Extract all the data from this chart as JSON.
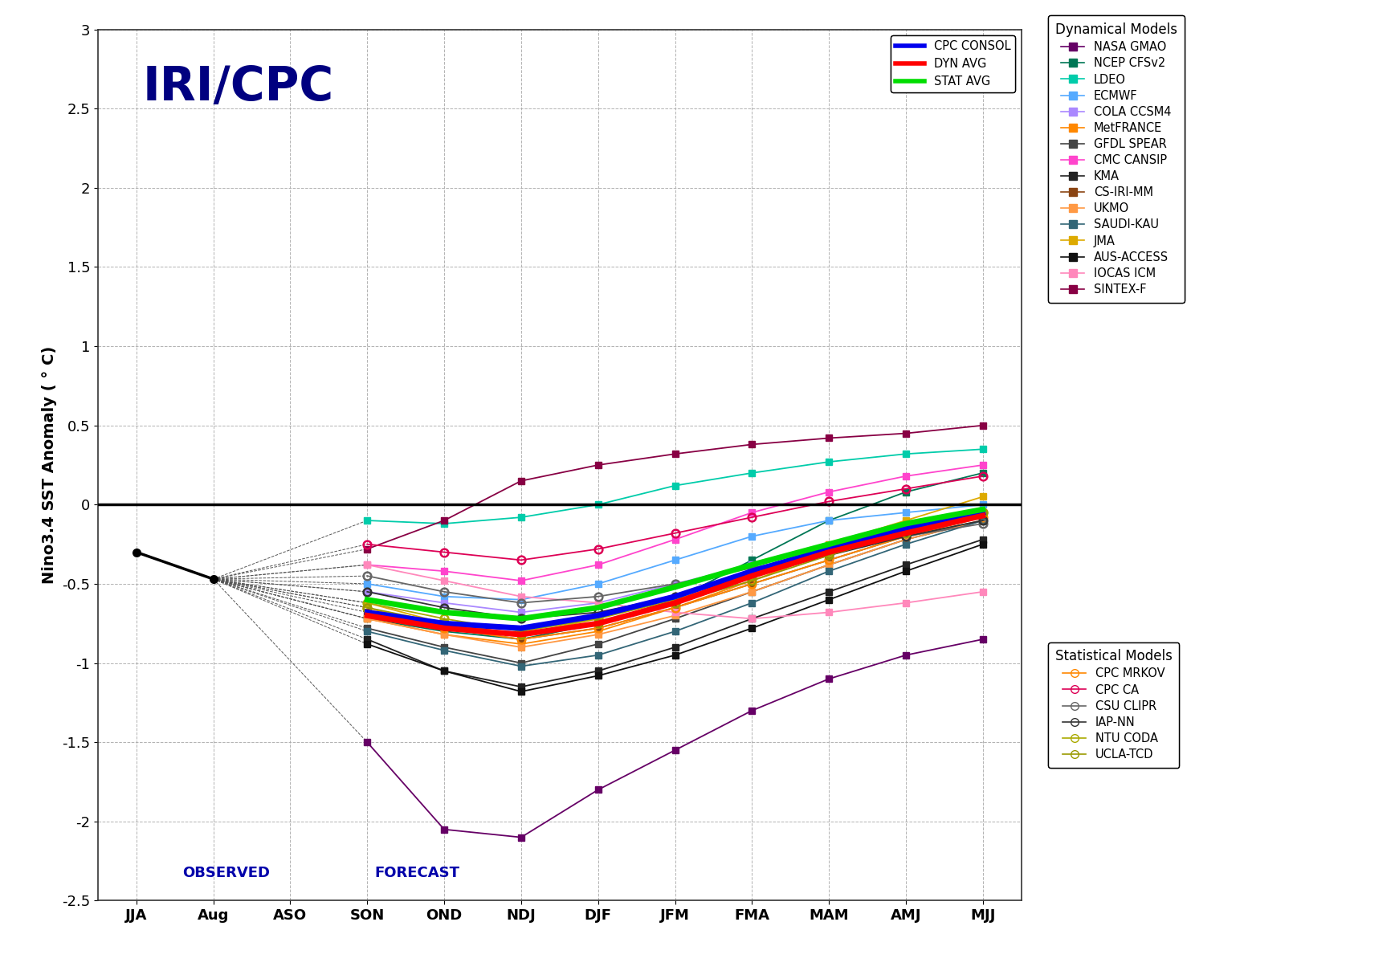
{
  "x_labels": [
    "JJA",
    "Aug",
    "ASO",
    "SON",
    "OND",
    "NDJ",
    "DJF",
    "JFM",
    "FMA",
    "MAM",
    "AMJ",
    "MJJ"
  ],
  "x_positions": [
    0,
    1,
    2,
    3,
    4,
    5,
    6,
    7,
    8,
    9,
    10,
    11
  ],
  "ylim": [
    -2.5,
    3.0
  ],
  "yticks": [
    -2.5,
    -2.0,
    -1.5,
    -1.0,
    -0.5,
    0.0,
    0.5,
    1.0,
    1.5,
    2.0,
    2.5,
    3.0
  ],
  "ylabel": "Nino3.4 SST Anomaly ( ° C)",
  "title_text": "IRI/CPC",
  "title_color": "#000080",
  "observed_label": "OBSERVED",
  "forecast_label": "FORECAST",
  "background_color": "#ffffff",
  "observed_data": {
    "x": [
      0,
      1
    ],
    "y": [
      -0.3,
      -0.47
    ],
    "color": "#000000",
    "linewidth": 2.5,
    "marker": "o",
    "markersize": 7,
    "zorder": 10
  },
  "dyn_models": {
    "NASA_GMAO": {
      "color": "#660066",
      "marker": "s",
      "x": [
        3,
        4,
        5,
        6,
        7,
        8,
        9,
        10,
        11
      ],
      "y": [
        -1.5,
        -2.05,
        -2.1,
        -1.8,
        -1.55,
        -1.3,
        -1.1,
        -0.95,
        -0.85
      ]
    },
    "NCEP_CFSv2": {
      "color": "#007755",
      "marker": "s",
      "x": [
        3,
        4,
        5,
        6,
        7,
        8,
        9,
        10,
        11
      ],
      "y": [
        -0.72,
        -0.8,
        -0.85,
        -0.75,
        -0.6,
        -0.35,
        -0.1,
        0.08,
        0.2
      ]
    },
    "LDEO": {
      "color": "#00ccaa",
      "marker": "s",
      "x": [
        3,
        4,
        5,
        6,
        7,
        8,
        9,
        10,
        11
      ],
      "y": [
        -0.1,
        -0.12,
        -0.08,
        0.0,
        0.12,
        0.2,
        0.27,
        0.32,
        0.35
      ]
    },
    "ECMWF": {
      "color": "#55aaff",
      "marker": "s",
      "x": [
        3,
        4,
        5,
        6,
        7,
        8,
        9,
        10,
        11
      ],
      "y": [
        -0.5,
        -0.58,
        -0.6,
        -0.5,
        -0.35,
        -0.2,
        -0.1,
        -0.05,
        0.0
      ]
    },
    "COLA_CCSM4": {
      "color": "#aa88ff",
      "marker": "s",
      "x": [
        3,
        4,
        5,
        6,
        7,
        8,
        9,
        10,
        11
      ],
      "y": [
        -0.55,
        -0.62,
        -0.68,
        -0.62,
        -0.5,
        -0.38,
        -0.25,
        -0.15,
        -0.08
      ]
    },
    "MetFRANCE": {
      "color": "#ff8800",
      "marker": "s",
      "x": [
        3,
        4,
        5,
        6,
        7,
        8,
        9,
        10,
        11
      ],
      "y": [
        -0.72,
        -0.82,
        -0.88,
        -0.8,
        -0.65,
        -0.48,
        -0.3,
        -0.15,
        -0.05
      ]
    },
    "GFDL_SPEAR": {
      "color": "#444444",
      "marker": "s",
      "x": [
        3,
        4,
        5,
        6,
        7,
        8,
        9,
        10,
        11
      ],
      "y": [
        -0.78,
        -0.9,
        -1.0,
        -0.88,
        -0.72,
        -0.55,
        -0.38,
        -0.22,
        -0.1
      ]
    },
    "CMC_CANSIP": {
      "color": "#ff44cc",
      "marker": "s",
      "x": [
        3,
        4,
        5,
        6,
        7,
        8,
        9,
        10,
        11
      ],
      "y": [
        -0.38,
        -0.42,
        -0.48,
        -0.38,
        -0.22,
        -0.05,
        0.08,
        0.18,
        0.25
      ]
    },
    "KMA": {
      "color": "#222222",
      "marker": "s",
      "x": [
        3,
        4,
        5,
        6,
        7,
        8,
        9,
        10,
        11
      ],
      "y": [
        -0.85,
        -1.05,
        -1.15,
        -1.05,
        -0.9,
        -0.72,
        -0.55,
        -0.38,
        -0.22
      ]
    },
    "CS_IRI_MM": {
      "color": "#8B4513",
      "marker": "s",
      "x": [
        3,
        4,
        5,
        6,
        7,
        8,
        9,
        10,
        11
      ],
      "y": [
        -0.68,
        -0.78,
        -0.85,
        -0.78,
        -0.65,
        -0.5,
        -0.35,
        -0.2,
        -0.1
      ]
    },
    "UKMO": {
      "color": "#ff9944",
      "marker": "s",
      "x": [
        3,
        4,
        5,
        6,
        7,
        8,
        9,
        10,
        11
      ],
      "y": [
        -0.72,
        -0.82,
        -0.9,
        -0.82,
        -0.7,
        -0.55,
        -0.38,
        -0.22,
        -0.1
      ]
    },
    "SAUDI_KAU": {
      "color": "#336677",
      "marker": "s",
      "x": [
        3,
        4,
        5,
        6,
        7,
        8,
        9,
        10,
        11
      ],
      "y": [
        -0.8,
        -0.92,
        -1.02,
        -0.95,
        -0.8,
        -0.62,
        -0.42,
        -0.25,
        -0.1
      ]
    },
    "JMA": {
      "color": "#ddaa00",
      "marker": "s",
      "x": [
        3,
        4,
        5,
        6,
        7,
        8,
        9,
        10,
        11
      ],
      "y": [
        -0.62,
        -0.75,
        -0.82,
        -0.72,
        -0.58,
        -0.42,
        -0.25,
        -0.1,
        0.05
      ]
    },
    "AUS_ACCESS": {
      "color": "#111111",
      "marker": "s",
      "x": [
        3,
        4,
        5,
        6,
        7,
        8,
        9,
        10,
        11
      ],
      "y": [
        -0.88,
        -1.05,
        -1.18,
        -1.08,
        -0.95,
        -0.78,
        -0.6,
        -0.42,
        -0.25
      ]
    },
    "IOCAS_ICM": {
      "color": "#ff88bb",
      "marker": "s",
      "x": [
        3,
        4,
        5,
        6,
        7,
        8,
        9,
        10,
        11
      ],
      "y": [
        -0.38,
        -0.48,
        -0.58,
        -0.62,
        -0.68,
        -0.72,
        -0.68,
        -0.62,
        -0.55
      ]
    },
    "SINTEX_F": {
      "color": "#880044",
      "marker": "s",
      "x": [
        3,
        4,
        5,
        6,
        7,
        8,
        9,
        10,
        11
      ],
      "y": [
        -0.28,
        -0.1,
        0.15,
        0.25,
        0.32,
        0.38,
        0.42,
        0.45,
        0.5
      ]
    }
  },
  "stat_models": {
    "CPC_MRKOV": {
      "color": "#ff8800",
      "marker": "o",
      "x": [
        3,
        4,
        5,
        6,
        7,
        8,
        9,
        10,
        11
      ],
      "y": [
        -0.65,
        -0.78,
        -0.85,
        -0.78,
        -0.65,
        -0.5,
        -0.35,
        -0.2,
        -0.08
      ]
    },
    "CPC_CA": {
      "color": "#dd0055",
      "marker": "o",
      "x": [
        3,
        4,
        5,
        6,
        7,
        8,
        9,
        10,
        11
      ],
      "y": [
        -0.25,
        -0.3,
        -0.35,
        -0.28,
        -0.18,
        -0.08,
        0.02,
        0.1,
        0.18
      ]
    },
    "CSU_CLIPR": {
      "color": "#666666",
      "marker": "o",
      "x": [
        3,
        4,
        5,
        6,
        7,
        8,
        9,
        10,
        11
      ],
      "y": [
        -0.45,
        -0.55,
        -0.62,
        -0.58,
        -0.5,
        -0.4,
        -0.3,
        -0.2,
        -0.12
      ]
    },
    "IAP_NN": {
      "color": "#333333",
      "marker": "o",
      "x": [
        3,
        4,
        5,
        6,
        7,
        8,
        9,
        10,
        11
      ],
      "y": [
        -0.55,
        -0.65,
        -0.72,
        -0.68,
        -0.58,
        -0.45,
        -0.32,
        -0.2,
        -0.1
      ]
    },
    "NTU_CODA": {
      "color": "#aaaa00",
      "marker": "o",
      "x": [
        3,
        4,
        5,
        6,
        7,
        8,
        9,
        10,
        11
      ],
      "y": [
        -0.62,
        -0.72,
        -0.8,
        -0.72,
        -0.6,
        -0.45,
        -0.3,
        -0.15,
        -0.05
      ]
    },
    "UCLA_TCD": {
      "color": "#999900",
      "marker": "o",
      "x": [
        3,
        4,
        5,
        6,
        7,
        8,
        9,
        10,
        11
      ],
      "y": [
        -0.65,
        -0.75,
        -0.82,
        -0.75,
        -0.62,
        -0.48,
        -0.32,
        -0.18,
        -0.05
      ]
    }
  },
  "consensus_lines": {
    "CPC_CONSOL": {
      "color": "#0000ee",
      "linewidth": 5.0,
      "x": [
        3,
        4,
        5,
        6,
        7,
        8,
        9,
        10,
        11
      ],
      "y": [
        -0.68,
        -0.75,
        -0.78,
        -0.7,
        -0.58,
        -0.42,
        -0.28,
        -0.15,
        -0.05
      ]
    },
    "DYN_AVG": {
      "color": "#ff0000",
      "linewidth": 5.0,
      "x": [
        3,
        4,
        5,
        6,
        7,
        8,
        9,
        10,
        11
      ],
      "y": [
        -0.7,
        -0.78,
        -0.82,
        -0.75,
        -0.62,
        -0.45,
        -0.3,
        -0.18,
        -0.07
      ]
    },
    "STAT_AVG": {
      "color": "#00dd00",
      "linewidth": 5.0,
      "x": [
        3,
        4,
        5,
        6,
        7,
        8,
        9,
        10,
        11
      ],
      "y": [
        -0.6,
        -0.68,
        -0.72,
        -0.65,
        -0.52,
        -0.38,
        -0.25,
        -0.12,
        -0.03
      ]
    }
  }
}
